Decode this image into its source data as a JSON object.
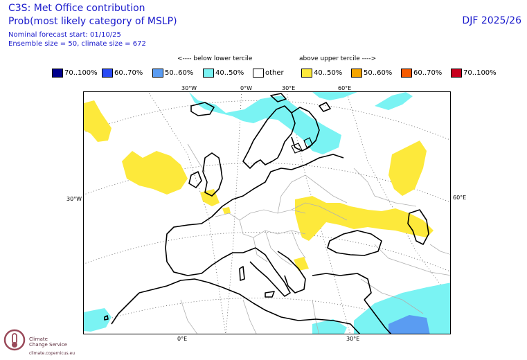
{
  "header": {
    "title1": "C3S: Met Office contribution",
    "title2": "Prob(most likely category of MSLP)",
    "line1": "Nominal forecast start: 01/10/25",
    "line2": "Ensemble size = 50, climate size = 672",
    "season": "DJF 2025/26"
  },
  "tercile": {
    "below": "<---- below lower tercile",
    "above": "above upper tercile ---->"
  },
  "legend": [
    {
      "label": "70..100%",
      "color": "#00008c"
    },
    {
      "label": "60..70%",
      "color": "#2a4bf5"
    },
    {
      "label": "50..60%",
      "color": "#5a9cf2"
    },
    {
      "label": "40..50%",
      "color": "#7af3f3"
    },
    {
      "label": "other",
      "color": "#ffffff"
    },
    {
      "label": "40..50%",
      "color": "#fde93b"
    },
    {
      "label": "50..60%",
      "color": "#f5a500"
    },
    {
      "label": "60..70%",
      "color": "#f55a00"
    },
    {
      "label": "70..100%",
      "color": "#c8001e"
    }
  ],
  "axes": {
    "top": [
      "30°W",
      "0°W",
      "30°E",
      "60°E"
    ],
    "left": "30°W",
    "right": "60°E",
    "bottom": [
      "0°E",
      "30°E"
    ]
  },
  "logo": {
    "line1": "Climate",
    "line2": "Change Service",
    "url": "climate.copernicus.eu"
  }
}
